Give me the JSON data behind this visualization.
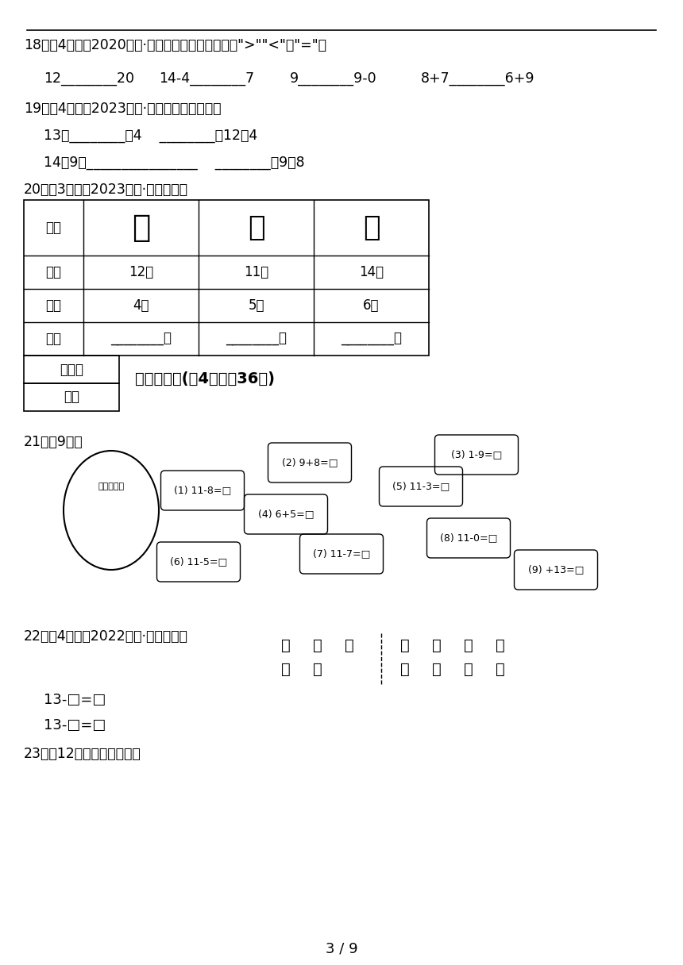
{
  "bg_color": "#ffffff",
  "text_color": "#000000",
  "page_num": "3 / 9",
  "line18_title": "18．（4分）（2020一上·鼓楼期末）在横线上填上\">\"\"<\"或\"=\"。",
  "line18_items": [
    "12________20",
    "14-4________7",
    "9________9-0",
    "8+7________6+9"
  ],
  "line19_title": "19．（4分）（2023一下·西平月考）我会填。",
  "line19_line1": "13比________多4    ________比12少4",
  "line19_line2": "14比9多________    ________比9多8",
  "line20_title": "20．（3分）（2023一下·通榆月考）",
  "table_headers": [
    "商品",
    "",
    "",
    ""
  ],
  "table_col1": [
    "商品",
    "原有",
    "卖出",
    "还剩"
  ],
  "table_col2_row1": "12瓶",
  "table_col2_row2": "4瓶",
  "table_col2_row3": "________瓶",
  "table_col3_row1": "11个",
  "table_col3_row2": "5个",
  "table_col3_row3": "________个",
  "table_col4_row1": "14副",
  "table_col4_row2": "6副",
  "table_col4_row3": "________副",
  "section4_title": "四、计算题(共4题；共36分)",
  "q21_label": "21．（9分）",
  "q21_problems": [
    "(1) 11-8=",
    "(2) 9+8=",
    "(3) 1-9=",
    "(4) 6+5=",
    "(5) 11-3=",
    "(6) 11-5=",
    "(7) 11-7=",
    "(8) 11-0=",
    "(9) +13="
  ],
  "q22_label": "22．（4分）（2022一下·余江期末）",
  "q22_line1": "13-□=□",
  "q22_line2": "13-□=□",
  "q23_label": "23．（12分）看谁先过河。"
}
